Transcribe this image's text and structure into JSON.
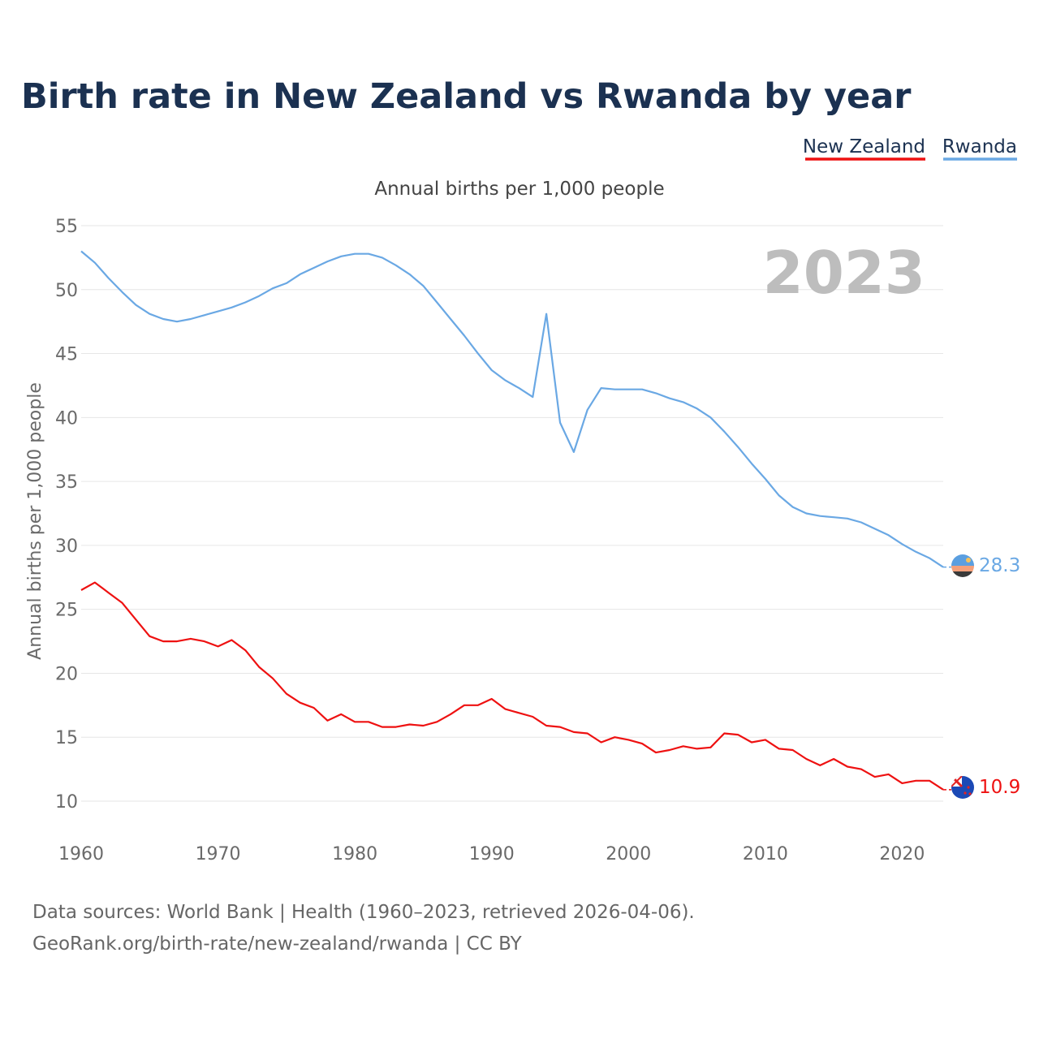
{
  "chart_data": {
    "type": "line",
    "title": "Birth rate in New Zealand vs Rwanda by year",
    "subtitle": "Annual births per 1,000 people",
    "ylabel": "Annual births per 1,000 people",
    "xlabel": "",
    "year_badge": "2023",
    "xlim": [
      1960,
      2023
    ],
    "ylim": [
      10,
      55
    ],
    "yticks": [
      10,
      15,
      20,
      25,
      30,
      35,
      40,
      45,
      50,
      55
    ],
    "xticks": [
      1960,
      1970,
      1980,
      1990,
      2000,
      2010,
      2020
    ],
    "x": [
      1960,
      1961,
      1962,
      1963,
      1964,
      1965,
      1966,
      1967,
      1968,
      1969,
      1970,
      1971,
      1972,
      1973,
      1974,
      1975,
      1976,
      1977,
      1978,
      1979,
      1980,
      1981,
      1982,
      1983,
      1984,
      1985,
      1986,
      1987,
      1988,
      1989,
      1990,
      1991,
      1992,
      1993,
      1994,
      1995,
      1996,
      1997,
      1998,
      1999,
      2000,
      2001,
      2002,
      2003,
      2004,
      2005,
      2006,
      2007,
      2008,
      2009,
      2010,
      2011,
      2012,
      2013,
      2014,
      2015,
      2016,
      2017,
      2018,
      2019,
      2020,
      2021,
      2022,
      2023
    ],
    "series": [
      {
        "name": "New Zealand",
        "color": "#ee1111",
        "end_label": "10.9",
        "values": [
          26.5,
          27.1,
          26.3,
          25.5,
          24.2,
          22.9,
          22.5,
          22.5,
          22.7,
          22.5,
          22.1,
          22.6,
          21.8,
          20.5,
          19.6,
          18.4,
          17.7,
          17.3,
          16.3,
          16.8,
          16.2,
          16.2,
          15.8,
          15.8,
          16.0,
          15.9,
          16.2,
          16.8,
          17.5,
          17.5,
          18.0,
          17.2,
          16.9,
          16.6,
          15.9,
          15.8,
          15.4,
          15.3,
          14.6,
          15.0,
          14.8,
          14.5,
          13.8,
          14.0,
          14.3,
          14.1,
          14.2,
          15.3,
          15.2,
          14.6,
          14.8,
          14.1,
          14.0,
          13.3,
          12.8,
          13.3,
          12.7,
          12.5,
          11.9,
          12.1,
          11.4,
          11.6,
          11.6,
          10.9
        ]
      },
      {
        "name": "Rwanda",
        "color": "#6aa8e4",
        "end_label": "28.3",
        "values": [
          53.0,
          52.1,
          50.9,
          49.8,
          48.8,
          48.1,
          47.7,
          47.5,
          47.7,
          48.0,
          48.3,
          48.6,
          49.0,
          49.5,
          50.1,
          50.5,
          51.2,
          51.7,
          52.2,
          52.6,
          52.8,
          52.8,
          52.5,
          51.9,
          51.2,
          50.3,
          49.0,
          47.7,
          46.4,
          45.0,
          43.7,
          42.9,
          42.3,
          41.6,
          48.1,
          39.6,
          37.3,
          40.6,
          42.3,
          42.2,
          42.2,
          42.2,
          41.9,
          41.5,
          41.2,
          40.7,
          40.0,
          38.9,
          37.7,
          36.4,
          35.2,
          33.9,
          33.0,
          32.5,
          32.3,
          32.2,
          32.1,
          31.8,
          31.3,
          30.8,
          30.1,
          29.5,
          29.0,
          28.3
        ]
      }
    ],
    "sources": [
      "Data sources: World Bank | Health (1960–2023, retrieved 2026-04-06).",
      "GeoRank.org/birth-rate/new-zealand/rwanda | CC BY"
    ]
  }
}
